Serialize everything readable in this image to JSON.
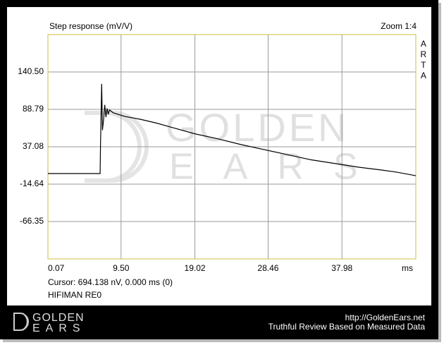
{
  "chart_data": {
    "type": "line",
    "title": "Step response (mV/V)",
    "zoom_label": "Zoom 1:4",
    "side_label": "ARTA",
    "x_unit": "ms",
    "cursor_text": "Cursor: 694.138 nV,  0.000 ms  (0)",
    "xlim": [
      0.07,
      47.5
    ],
    "ylim": [
      -118.06,
      192.21
    ],
    "xticks": [
      0.07,
      {
        "value": 9.5,
        "label": "9.50"
      },
      19.02,
      28.46,
      37.98
    ],
    "yticks": [
      {
        "value": 140.5,
        "label": "140.50"
      },
      88.79,
      37.08,
      -14.64,
      -66.35
    ],
    "grid": true,
    "series": [
      {
        "name": "HIFIMAN RE0",
        "color": "#000000",
        "x": [
          0.07,
          6.8,
          6.85,
          7.0,
          7.1,
          7.25,
          7.4,
          7.55,
          7.7,
          7.85,
          8.0,
          8.5,
          10,
          12,
          14,
          16,
          19,
          22,
          25,
          28,
          31,
          34,
          37,
          40,
          43,
          45,
          47.5
        ],
        "values": [
          0,
          0,
          40,
          124,
          60,
          75,
          95,
          78,
          90,
          82,
          88,
          84,
          79,
          75,
          70,
          64,
          55,
          48,
          40,
          33,
          26,
          19,
          14,
          9,
          5,
          2,
          -3
        ]
      }
    ]
  },
  "branding": {
    "watermark_top": "GOLDEN",
    "watermark_bottom": "EARS",
    "logo_top": "GOLDEN",
    "logo_bottom": "EARS",
    "url": "http://GoldenEars.net",
    "tagline": "Truthful Review Based on Measured Data"
  }
}
